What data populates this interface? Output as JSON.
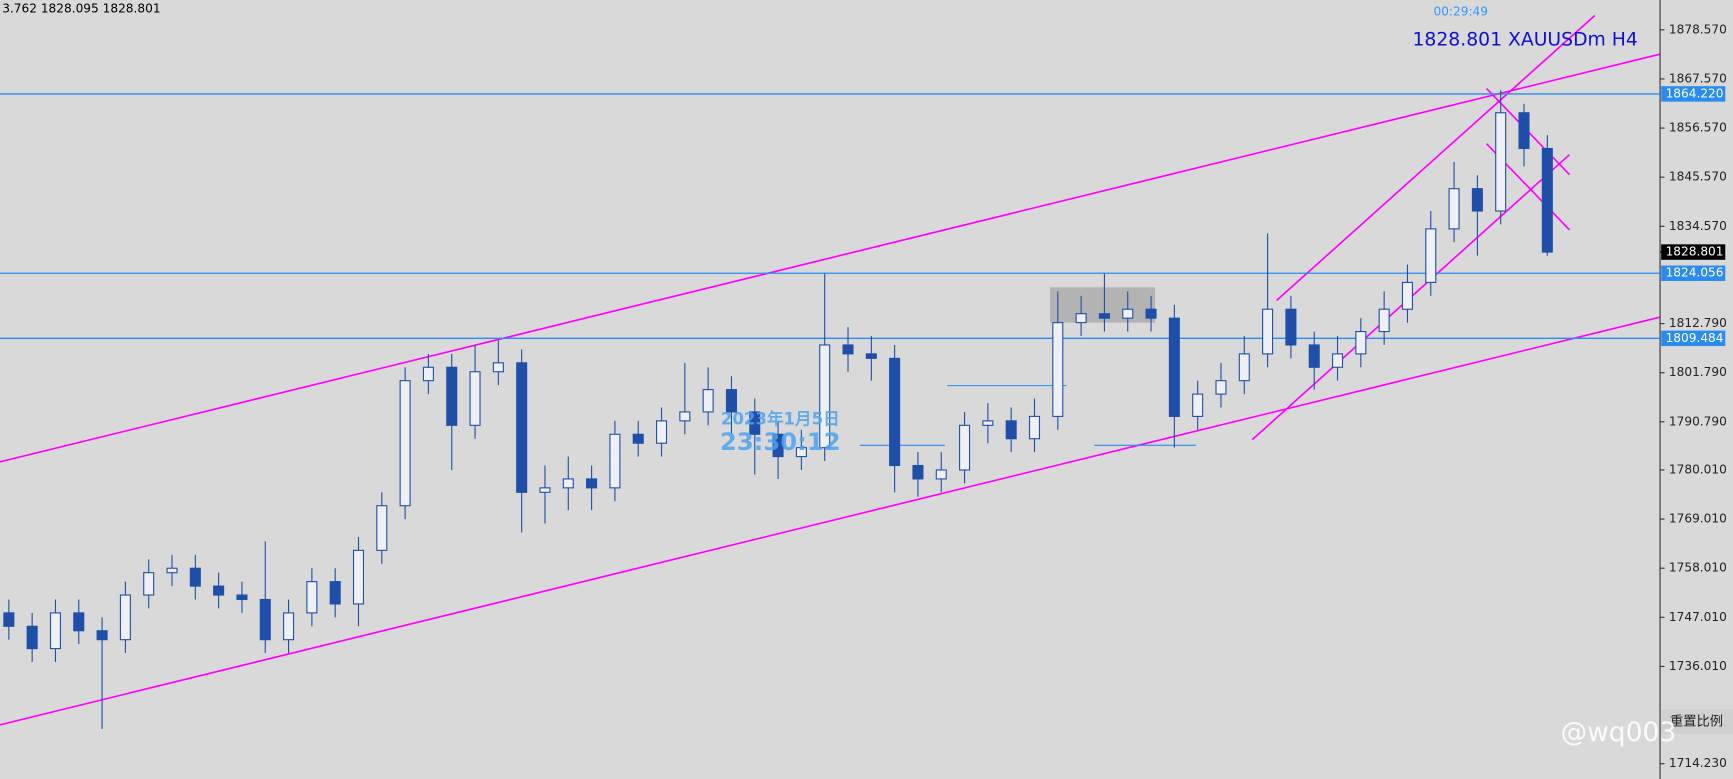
{
  "header": {
    "ohlc": "3.762 1828.095 1828.801",
    "countdown": "00:29:49",
    "symbol": "1828.801 XAUUSDm H4"
  },
  "watermark": {
    "date": "2023年1月5日",
    "time": "23:30:12"
  },
  "chart_data": {
    "type": "candlestick",
    "open": [
      1748,
      1745,
      1740,
      1748,
      1744,
      1742,
      1752,
      1757,
      1758,
      1754,
      1752,
      1751,
      1742,
      1748,
      1755,
      1750,
      1762,
      1772,
      1800,
      1803,
      1790,
      1802,
      1804,
      1775,
      1776,
      1778,
      1776,
      1788,
      1786,
      1791,
      1793,
      1798,
      1793,
      1788,
      1783,
      1785,
      1808,
      1806,
      1805,
      1781,
      1778,
      1780,
      1790,
      1791,
      1787,
      1792,
      1813,
      1815,
      1814,
      1816,
      1814,
      1792,
      1797,
      1800,
      1806,
      1816,
      1808,
      1803,
      1806,
      1811,
      1816,
      1822,
      1834,
      1843,
      1838,
      1860,
      1852
    ],
    "high": [
      1751,
      1748,
      1751,
      1751,
      1747,
      1755,
      1760,
      1761,
      1761,
      1757,
      1755,
      1764,
      1751,
      1758,
      1758,
      1765,
      1775,
      1803,
      1806,
      1806,
      1808,
      1809,
      1807,
      1781,
      1783,
      1781,
      1791,
      1791,
      1794,
      1804,
      1803,
      1801,
      1796,
      1791,
      1789,
      1824,
      1812,
      1810,
      1808,
      1784,
      1784,
      1793,
      1795,
      1794,
      1796,
      1820,
      1819,
      1824,
      1820,
      1819,
      1817,
      1800,
      1804,
      1810,
      1833,
      1819,
      1811,
      1810,
      1814,
      1820,
      1826,
      1838,
      1849,
      1846,
      1865,
      1862,
      1855
    ],
    "low": [
      1742,
      1737,
      1737,
      1741,
      1722,
      1739,
      1749,
      1754,
      1751,
      1749,
      1748,
      1739,
      1739,
      1745,
      1747,
      1745,
      1759,
      1769,
      1797,
      1780,
      1787,
      1799,
      1766,
      1768,
      1771,
      1771,
      1773,
      1783,
      1783,
      1788,
      1790,
      1788,
      1779,
      1778,
      1780,
      1782,
      1802,
      1800,
      1775,
      1774,
      1775,
      1777,
      1786,
      1784,
      1784,
      1789,
      1810,
      1811,
      1811,
      1811,
      1785,
      1789,
      1794,
      1797,
      1803,
      1805,
      1798,
      1800,
      1803,
      1808,
      1813,
      1819,
      1831,
      1828,
      1835,
      1848,
      1828
    ],
    "close": [
      1745,
      1740,
      1748,
      1744,
      1742,
      1752,
      1757,
      1758,
      1754,
      1752,
      1751,
      1742,
      1748,
      1755,
      1750,
      1762,
      1772,
      1800,
      1803,
      1790,
      1802,
      1804,
      1775,
      1776,
      1778,
      1776,
      1788,
      1786,
      1791,
      1793,
      1798,
      1793,
      1788,
      1783,
      1785,
      1808,
      1806,
      1805,
      1781,
      1778,
      1780,
      1790,
      1791,
      1787,
      1792,
      1813,
      1815,
      1814,
      1816,
      1814,
      1792,
      1797,
      1800,
      1806,
      1816,
      1808,
      1803,
      1806,
      1811,
      1816,
      1822,
      1834,
      1843,
      1838,
      1860,
      1852,
      1828.801
    ],
    "candle_color": "#1f4fa8",
    "up_fill": "#eef0f5",
    "down_fill": "#1f4fa8",
    "ylim": [
      1710.8,
      1885.25
    ],
    "yticks": [
      {
        "value": 1878.57,
        "label": "1878.570"
      },
      {
        "value": 1867.57,
        "label": "1867.570"
      },
      {
        "value": 1856.57,
        "label": "1856.570"
      },
      {
        "value": 1845.57,
        "label": "1845.570"
      },
      {
        "value": 1834.57,
        "label": "1834.570"
      },
      {
        "value": 1812.79,
        "label": "1812.790"
      },
      {
        "value": 1801.79,
        "label": "1801.790"
      },
      {
        "value": 1790.79,
        "label": "1790.790"
      },
      {
        "value": 1780.01,
        "label": "1780.010"
      },
      {
        "value": 1769.01,
        "label": "1769.010"
      },
      {
        "value": 1758.01,
        "label": "1758.010"
      },
      {
        "value": 1747.01,
        "label": "1747.010"
      },
      {
        "value": 1736.01,
        "label": "1736.010"
      },
      {
        "value": 1714.23,
        "label": "1714.230"
      }
    ],
    "levels": [
      {
        "value": 1864.22,
        "label": "1864.220"
      },
      {
        "value": 1824.056,
        "label": "1824.056"
      },
      {
        "value": 1809.484,
        "label": "1809.484"
      }
    ],
    "level_color": "#2a8cf0",
    "last_price": {
      "value": 1828.801,
      "label": "1828.801"
    }
  },
  "footer": {
    "reset_button": "重置比例",
    "watermark": "@wq003"
  }
}
